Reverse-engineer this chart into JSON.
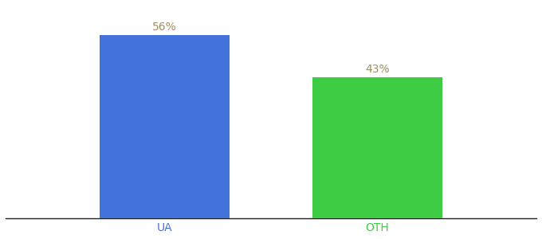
{
  "categories": [
    "UA",
    "OTH"
  ],
  "values": [
    56,
    43
  ],
  "bar_colors": [
    "#4472db",
    "#3dcc44"
  ],
  "label_texts": [
    "56%",
    "43%"
  ],
  "label_color": "#a09060",
  "tick_colors": [
    "#4472db",
    "#3dcc44"
  ],
  "background_color": "#ffffff",
  "ylim": [
    0,
    65
  ],
  "bar_width": 0.22,
  "x_positions": [
    0.32,
    0.68
  ],
  "xlim": [
    0.05,
    0.95
  ],
  "figsize": [
    6.8,
    3.0
  ],
  "dpi": 100,
  "label_fontsize": 10,
  "tick_fontsize": 10
}
